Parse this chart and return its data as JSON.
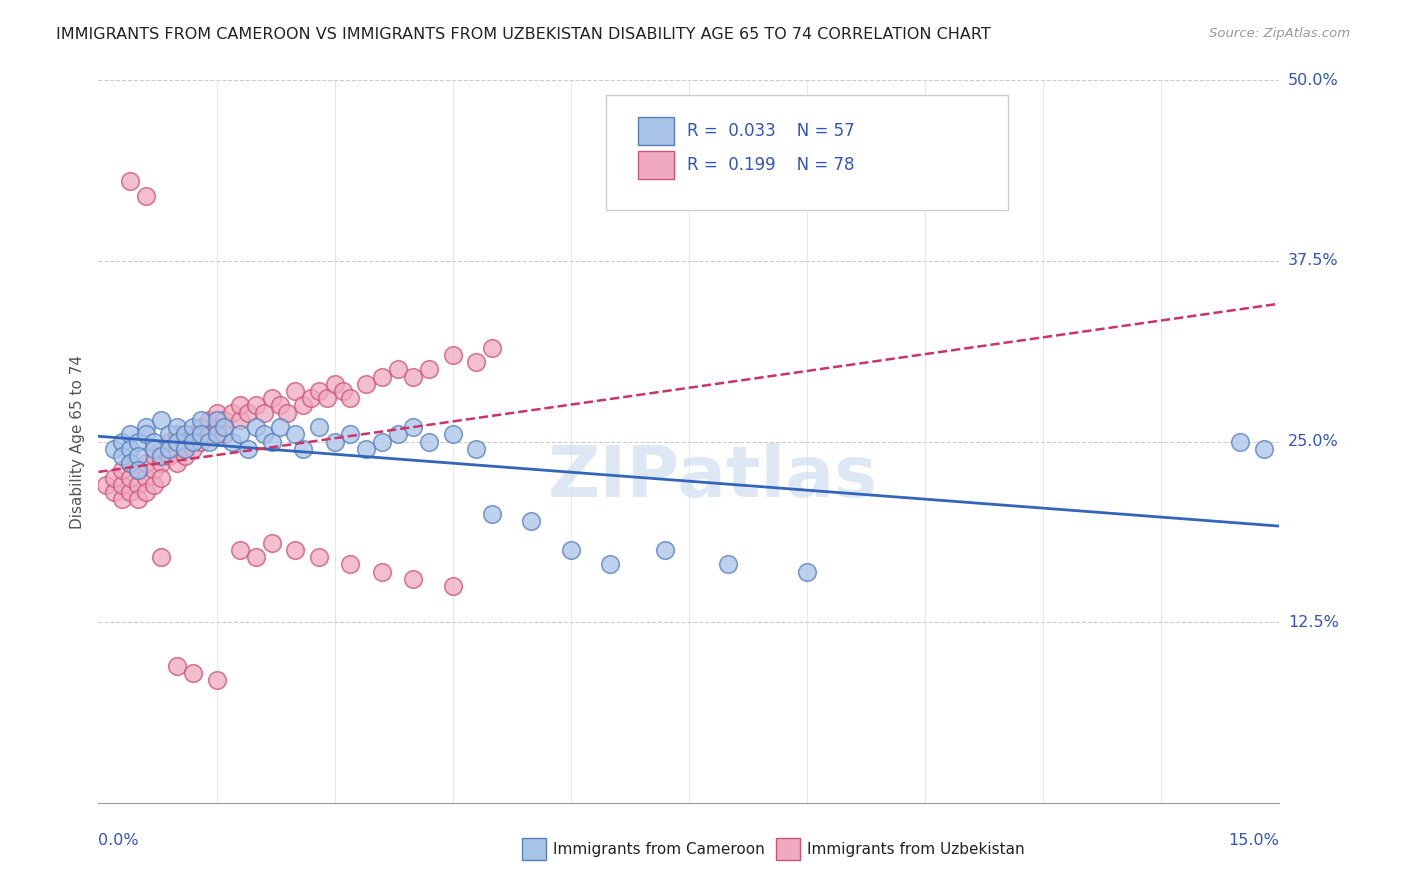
{
  "title": "IMMIGRANTS FROM CAMEROON VS IMMIGRANTS FROM UZBEKISTAN DISABILITY AGE 65 TO 74 CORRELATION CHART",
  "source": "Source: ZipAtlas.com",
  "xmin": 0.0,
  "xmax": 0.15,
  "ymin": 0.0,
  "ymax": 0.5,
  "cameroon_R": 0.033,
  "cameroon_N": 57,
  "uzbekistan_R": 0.199,
  "uzbekistan_N": 78,
  "cameroon_color": "#aac4e8",
  "uzbekistan_color": "#f0aac0",
  "cameroon_edge_color": "#5580bb",
  "uzbekistan_edge_color": "#cc5577",
  "cameroon_line_color": "#3366bb",
  "uzbekistan_line_color": "#cc3366",
  "label_color": "#3355bb",
  "title_color": "#222222",
  "source_color": "#999999",
  "legend_label_cameroon": "Immigrants from Cameroon",
  "legend_label_uzbekistan": "Immigrants from Uzbekistan",
  "watermark": "ZIPatlas",
  "cameroon_scatter_x": [
    0.002,
    0.003,
    0.003,
    0.004,
    0.004,
    0.004,
    0.005,
    0.005,
    0.005,
    0.006,
    0.006,
    0.007,
    0.007,
    0.008,
    0.008,
    0.009,
    0.009,
    0.01,
    0.01,
    0.011,
    0.011,
    0.012,
    0.012,
    0.013,
    0.013,
    0.014,
    0.015,
    0.015,
    0.016,
    0.017,
    0.018,
    0.019,
    0.02,
    0.021,
    0.022,
    0.023,
    0.025,
    0.026,
    0.028,
    0.03,
    0.032,
    0.034,
    0.036,
    0.038,
    0.04,
    0.042,
    0.045,
    0.048,
    0.05,
    0.055,
    0.06,
    0.065,
    0.072,
    0.08,
    0.09,
    0.145,
    0.148
  ],
  "cameroon_scatter_y": [
    0.245,
    0.25,
    0.24,
    0.255,
    0.245,
    0.235,
    0.25,
    0.24,
    0.23,
    0.26,
    0.255,
    0.25,
    0.245,
    0.265,
    0.24,
    0.255,
    0.245,
    0.26,
    0.25,
    0.255,
    0.245,
    0.26,
    0.25,
    0.265,
    0.255,
    0.25,
    0.265,
    0.255,
    0.26,
    0.25,
    0.255,
    0.245,
    0.26,
    0.255,
    0.25,
    0.26,
    0.255,
    0.245,
    0.26,
    0.25,
    0.255,
    0.245,
    0.25,
    0.255,
    0.26,
    0.25,
    0.255,
    0.245,
    0.2,
    0.195,
    0.175,
    0.165,
    0.175,
    0.165,
    0.16,
    0.25,
    0.245
  ],
  "uzbekistan_scatter_x": [
    0.001,
    0.002,
    0.002,
    0.003,
    0.003,
    0.003,
    0.004,
    0.004,
    0.004,
    0.005,
    0.005,
    0.005,
    0.006,
    0.006,
    0.006,
    0.007,
    0.007,
    0.007,
    0.008,
    0.008,
    0.008,
    0.009,
    0.009,
    0.01,
    0.01,
    0.01,
    0.011,
    0.011,
    0.012,
    0.012,
    0.013,
    0.013,
    0.014,
    0.014,
    0.015,
    0.015,
    0.016,
    0.016,
    0.017,
    0.018,
    0.018,
    0.019,
    0.02,
    0.021,
    0.022,
    0.023,
    0.024,
    0.025,
    0.026,
    0.027,
    0.028,
    0.029,
    0.03,
    0.031,
    0.032,
    0.034,
    0.036,
    0.038,
    0.04,
    0.042,
    0.045,
    0.048,
    0.05,
    0.018,
    0.02,
    0.022,
    0.025,
    0.028,
    0.032,
    0.036,
    0.04,
    0.045,
    0.01,
    0.012,
    0.015,
    0.008,
    0.006,
    0.004
  ],
  "uzbekistan_scatter_y": [
    0.22,
    0.215,
    0.225,
    0.21,
    0.22,
    0.23,
    0.215,
    0.225,
    0.235,
    0.22,
    0.21,
    0.23,
    0.225,
    0.235,
    0.215,
    0.23,
    0.24,
    0.22,
    0.235,
    0.245,
    0.225,
    0.24,
    0.25,
    0.245,
    0.235,
    0.255,
    0.25,
    0.24,
    0.255,
    0.245,
    0.26,
    0.25,
    0.265,
    0.255,
    0.26,
    0.27,
    0.265,
    0.255,
    0.27,
    0.265,
    0.275,
    0.27,
    0.275,
    0.27,
    0.28,
    0.275,
    0.27,
    0.285,
    0.275,
    0.28,
    0.285,
    0.28,
    0.29,
    0.285,
    0.28,
    0.29,
    0.295,
    0.3,
    0.295,
    0.3,
    0.31,
    0.305,
    0.315,
    0.175,
    0.17,
    0.18,
    0.175,
    0.17,
    0.165,
    0.16,
    0.155,
    0.15,
    0.095,
    0.09,
    0.085,
    0.17,
    0.42,
    0.43
  ]
}
